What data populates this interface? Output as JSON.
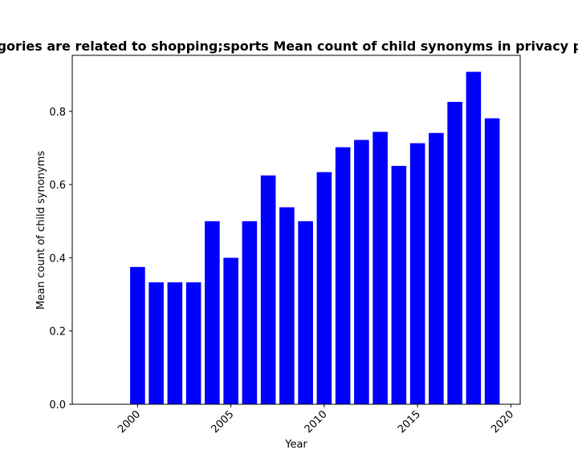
{
  "chart_data": {
    "type": "bar",
    "title": "Categories are related to shopping;sports Mean count of child synonyms in privacy policies",
    "xlabel": "Year",
    "ylabel": "Mean count of child synonyms",
    "x": [
      2000,
      2001,
      2002,
      2003,
      2004,
      2005,
      2006,
      2007,
      2008,
      2009,
      2010,
      2011,
      2012,
      2013,
      2014,
      2015,
      2016,
      2017,
      2018,
      2019
    ],
    "values": [
      0.375,
      0.333,
      0.333,
      0.333,
      0.5,
      0.4,
      0.5,
      0.625,
      0.538,
      0.5,
      0.634,
      0.702,
      0.722,
      0.744,
      0.651,
      0.713,
      0.741,
      0.826,
      0.908,
      0.781
    ],
    "xlim": [
      1996.5,
      2020.5
    ],
    "ylim": [
      0,
      0.953
    ],
    "x_ticks": [
      2000,
      2005,
      2010,
      2015,
      2020
    ],
    "y_ticks": [
      0.0,
      0.2,
      0.4,
      0.6,
      0.8
    ],
    "y_tick_labels": [
      "0.0",
      "0.2",
      "0.4",
      "0.6",
      "0.8"
    ],
    "bar_color": "#0000ff",
    "grid": false,
    "legend": "none"
  }
}
